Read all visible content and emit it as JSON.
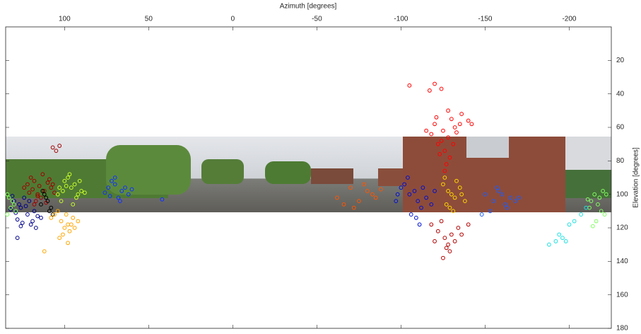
{
  "chart_data": {
    "type": "scatter",
    "xlabel": "Azimuth [degrees]",
    "ylabel": "Elevation [degrees]",
    "xlim": [
      135,
      -225
    ],
    "xticks": [
      100,
      50,
      0,
      -50,
      -100,
      -150,
      -200
    ],
    "ylim": [
      0,
      180
    ],
    "yticks": [
      20,
      40,
      60,
      80,
      100,
      120,
      140,
      160,
      180
    ],
    "y_inverted": true,
    "marker": "open-circle",
    "series": [
      {
        "color": "#a00000",
        "x": [
          118,
          115,
          112,
          120,
          108,
          116,
          122,
          110,
          114,
          119,
          106,
          113,
          117,
          121,
          109,
          111,
          116,
          124,
          107,
          118,
          107,
          103,
          105
        ],
        "values": [
          92,
          95,
          98,
          90,
          96,
          100,
          94,
          93,
          102,
          97,
          99,
          88,
          104,
          99,
          91,
          105,
          101,
          96,
          94,
          106,
          72,
          71,
          74
        ]
      },
      {
        "color": "#00008b",
        "x": [
          130,
          126,
          122,
          128,
          118,
          124,
          132,
          120,
          127,
          116,
          125,
          121,
          129,
          119,
          123,
          131,
          117,
          126,
          114,
          128
        ],
        "values": [
          104,
          108,
          112,
          115,
          110,
          102,
          109,
          118,
          106,
          113,
          117,
          104,
          111,
          116,
          107,
          101,
          120,
          119,
          114,
          126
        ]
      },
      {
        "color": "#000000",
        "x": [
          112,
          110,
          108,
          114,
          111,
          109,
          113,
          107
        ],
        "values": [
          100,
          104,
          108,
          106,
          102,
          110,
          98,
          112
        ]
      },
      {
        "color": "#c8ff28",
        "x": [
          100,
          96,
          92,
          98,
          102,
          94,
          90,
          104,
          97,
          93,
          101,
          95,
          99,
          91,
          103,
          88
        ],
        "values": [
          92,
          96,
          100,
          90,
          104,
          94,
          98,
          100,
          88,
          102,
          98,
          106,
          95,
          92,
          96,
          99
        ]
      },
      {
        "color": "#ffa500",
        "x": [
          106,
          102,
          98,
          95,
          100,
          104,
          92,
          97,
          101,
          108,
          96,
          99,
          103,
          94,
          98,
          112
        ],
        "values": [
          112,
          116,
          118,
          114,
          120,
          110,
          116,
          122,
          124,
          114,
          118,
          112,
          126,
          120,
          129,
          134
        ]
      },
      {
        "color": "#1030ff",
        "x": [
          70,
          66,
          74,
          62,
          68,
          72,
          60,
          76,
          64,
          70,
          67,
          73,
          42
        ],
        "values": [
          94,
          98,
          96,
          100,
          102,
          92,
          97,
          99,
          96,
          90,
          104,
          101,
          103
        ]
      },
      {
        "color": "#80ff60",
        "x": [
          133,
          131,
          134,
          130,
          132,
          129,
          134,
          -215,
          -218,
          -220,
          -213,
          -222,
          -217,
          -211,
          -219,
          -221,
          -216,
          -212,
          -214
        ],
        "values": [
          102,
          104,
          100,
          106,
          108,
          110,
          112,
          100,
          102,
          98,
          104,
          100,
          106,
          103,
          110,
          112,
          116,
          108,
          119
        ]
      },
      {
        "color": "#ff5500",
        "x": [
          -62,
          -70,
          -75,
          -80,
          -83,
          -66,
          -78,
          -72,
          -85,
          -88
        ],
        "values": [
          102,
          96,
          104,
          98,
          100,
          106,
          94,
          108,
          102,
          97
        ]
      },
      {
        "color": "#ff0000",
        "x": [
          -120,
          -125,
          -130,
          -128,
          -122,
          -132,
          -118,
          -135,
          -126,
          -140,
          -124,
          -136,
          -129,
          -121,
          -133,
          -127,
          -115,
          -142,
          -131,
          -123,
          -128,
          -126,
          -105,
          -120,
          -117,
          -124
        ],
        "values": [
          58,
          62,
          55,
          66,
          70,
          60,
          64,
          58,
          74,
          56,
          68,
          52,
          78,
          54,
          63,
          82,
          62,
          58,
          70,
          76,
          50,
          86,
          35,
          34,
          38,
          37
        ]
      },
      {
        "color": "#0010d0",
        "x": [
          -100,
          -105,
          -110,
          -108,
          -112,
          -115,
          -102,
          -118,
          -106,
          -98,
          -113,
          -109,
          -104,
          -120,
          -97,
          -111
        ],
        "values": [
          96,
          100,
          104,
          98,
          108,
          102,
          94,
          106,
          112,
          100,
          96,
          114,
          90,
          98,
          104,
          118
        ]
      },
      {
        "color": "#ffd700",
        "x": [
          -125,
          -128,
          -132,
          -130,
          -135,
          -127,
          -133,
          -138,
          -129,
          -136,
          -126,
          -131
        ],
        "values": [
          94,
          98,
          102,
          100,
          96,
          106,
          92,
          104,
          108,
          100,
          90,
          110
        ]
      },
      {
        "color": "#b00000",
        "x": [
          -118,
          -122,
          -126,
          -130,
          -128,
          -134,
          -120,
          -124,
          -132,
          -136,
          -127,
          -125,
          -140,
          -129
        ],
        "values": [
          118,
          122,
          126,
          124,
          130,
          120,
          128,
          116,
          128,
          124,
          132,
          138,
          118,
          134
        ]
      },
      {
        "color": "#1a5cff",
        "x": [
          -150,
          -155,
          -158,
          -162,
          -165,
          -153,
          -160,
          -168,
          -157,
          -163,
          -148,
          -170
        ],
        "values": [
          100,
          104,
          98,
          106,
          102,
          110,
          100,
          104,
          96,
          108,
          112,
          102
        ]
      },
      {
        "color": "#20e0e0",
        "x": [
          -188,
          -192,
          -196,
          -200,
          -203,
          -207,
          -198,
          -210,
          -194
        ],
        "values": [
          130,
          128,
          126,
          118,
          116,
          112,
          128,
          108,
          124
        ]
      }
    ]
  }
}
